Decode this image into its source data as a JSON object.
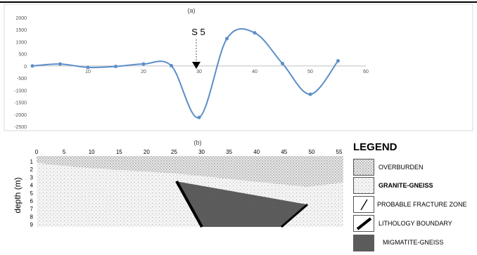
{
  "chart_data": [
    {
      "type": "line",
      "title": "(a)",
      "xlabel": "",
      "ylabel": "",
      "xlim": [
        0,
        60
      ],
      "ylim": [
        -2500,
        2000
      ],
      "x_ticks": [
        "0",
        "10",
        "20",
        "30",
        "40",
        "50",
        "60"
      ],
      "y_ticks": [
        "2000",
        "1500",
        "1000",
        "500",
        "0",
        "-500",
        "-1000",
        "-1500",
        "-2000",
        "-2500"
      ],
      "series": [
        {
          "color": "#5b8ec9",
          "x": [
            0,
            5,
            10,
            15,
            20,
            25,
            30,
            35,
            40,
            45,
            50,
            55
          ],
          "y": [
            0,
            80,
            -60,
            -20,
            80,
            10,
            -2130,
            1130,
            1370,
            100,
            -1170,
            210
          ]
        }
      ],
      "annotation": {
        "label": "S 5",
        "x": 29
      }
    },
    {
      "type": "diagram",
      "title": "(b)",
      "ylabel": "depth (m)",
      "x_ticks": [
        "0",
        "5",
        "10",
        "15",
        "20",
        "25",
        "30",
        "35",
        "40",
        "45",
        "50",
        "55"
      ],
      "depth_ticks": [
        "1",
        "2",
        "3",
        "4",
        "5",
        "6",
        "7",
        "8",
        "9"
      ]
    }
  ],
  "legend": {
    "title": "LEGEND",
    "items": [
      {
        "label": "OVERBURDEN",
        "swatch": "overburden",
        "bold": false
      },
      {
        "label": "GRANITE-GNEISS",
        "swatch": "granite",
        "bold": true
      },
      {
        "label": "PROBABLE FRACTURE ZONE",
        "swatch": "fracture",
        "bold": false
      },
      {
        "label": "LITHOLOGY BOUNDARY",
        "swatch": "boundary",
        "bold": false
      },
      {
        "label": "MIGMATITE-GNEISS",
        "swatch": "migmatite",
        "bold": false
      }
    ]
  }
}
